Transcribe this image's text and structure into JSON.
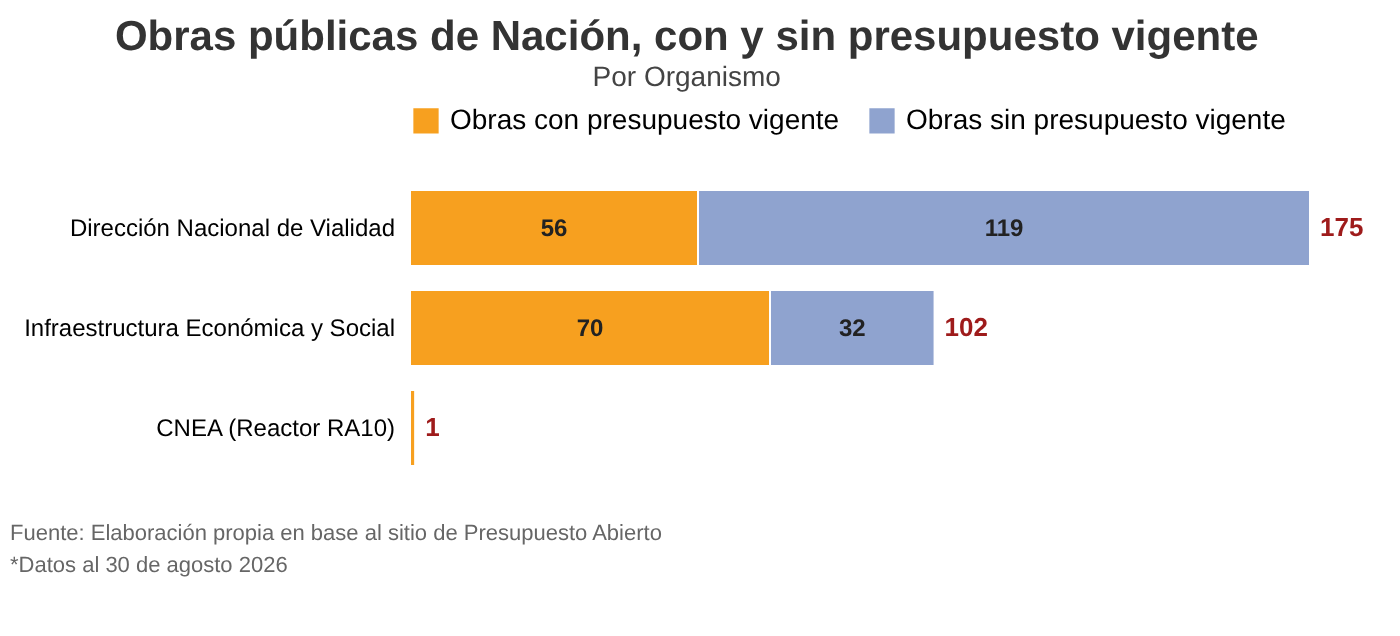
{
  "chart_data": {
    "type": "bar",
    "orientation": "horizontal",
    "stacked": true,
    "title": "Obras públicas de Nación, con y sin presupuesto vigente",
    "subtitle": "Por Organismo",
    "categories": [
      "Dirección Nacional de Vialidad",
      "Infraestructura Económica y Social",
      "CNEA (Reactor RA10)"
    ],
    "series": [
      {
        "name": "Obras con presupuesto vigente",
        "color": "#f7a01f",
        "values": [
          56,
          70,
          1
        ],
        "value_labels": [
          "56",
          "70",
          null
        ]
      },
      {
        "name": "Obras sin presupuesto vigente",
        "color": "#8fa3cf",
        "values": [
          119,
          32,
          null
        ],
        "value_labels": [
          "119",
          "32",
          null
        ]
      }
    ],
    "totals": [
      "175",
      "102",
      "1"
    ],
    "legend": "top",
    "annotations": [
      "Fuente: Elaboración propia en base al sitio de Presupuesto Abierto",
      "*Datos al 30 de agosto 2026"
    ]
  }
}
